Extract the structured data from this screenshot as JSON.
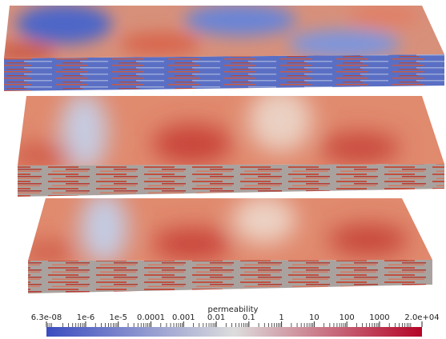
{
  "colorbar": {
    "title": "permeability",
    "range": [
      6.3e-08,
      20000
    ],
    "log_scale": true,
    "ticks": [
      {
        "value": 6.3e-08,
        "label": "6.3e-08"
      },
      {
        "value": 1e-06,
        "label": "1e-6"
      },
      {
        "value": 1e-05,
        "label": "1e-5"
      },
      0.0001,
      0.001,
      0.01,
      0.1,
      1,
      10,
      100,
      1000,
      {
        "value": 20000,
        "label": "2.0e+04"
      }
    ],
    "colors": [
      "#3b4cc0",
      "#dddddd",
      "#b40426"
    ]
  }
}
